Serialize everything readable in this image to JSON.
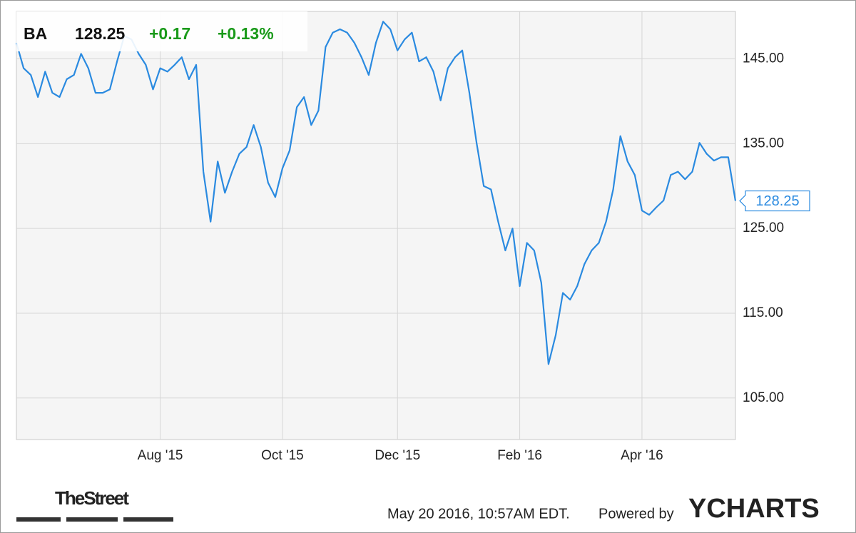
{
  "chart_data": {
    "type": "line",
    "change": "+0.17",
    "change_percent": "+0.13%",
    "categories": [
      null,
      null,
      null,
      null,
      null,
      null,
      null,
      null,
      null,
      null,
      null,
      null,
      null,
      null,
      null,
      null,
      null,
      null,
      null,
      null,
      "Aug '15",
      null,
      null,
      null,
      null,
      null,
      null,
      null,
      null,
      null,
      null,
      null,
      null,
      null,
      null,
      null,
      null,
      "Oct '15",
      null,
      null,
      null,
      null,
      null,
      null,
      null,
      null,
      null,
      null,
      null,
      null,
      null,
      null,
      null,
      "Dec '15",
      null,
      null,
      null,
      null,
      null,
      null,
      null,
      null,
      null,
      null,
      null,
      null,
      null,
      null,
      null,
      null,
      "Feb '16",
      null,
      null,
      null,
      null,
      null,
      null,
      null,
      null,
      null,
      null,
      null,
      null,
      null,
      null,
      null,
      null,
      "Apr '16",
      null,
      null,
      null,
      null,
      null,
      null,
      null,
      null,
      null,
      null,
      null,
      null,
      null
    ],
    "series": [
      {
        "name": "BA",
        "color": "#2a8ae0",
        "values": [
          146.9,
          143.9,
          143.1,
          140.5,
          143.5,
          141.0,
          140.5,
          142.6,
          143.1,
          145.6,
          143.9,
          141.0,
          141.0,
          141.4,
          144.7,
          147.7,
          147.3,
          145.6,
          144.3,
          141.4,
          143.9,
          143.5,
          144.3,
          145.2,
          142.6,
          144.3,
          131.7,
          125.8,
          132.9,
          129.2,
          131.7,
          133.8,
          134.6,
          137.2,
          134.6,
          130.4,
          128.7,
          132.1,
          134.2,
          139.3,
          140.5,
          137.2,
          138.9,
          146.4,
          148.1,
          148.5,
          148.1,
          146.9,
          145.2,
          143.1,
          146.9,
          149.4,
          148.5,
          146.0,
          147.3,
          148.1,
          144.7,
          145.2,
          143.5,
          140.1,
          143.9,
          145.2,
          146.0,
          141.0,
          135.1,
          130.0,
          129.6,
          125.8,
          122.4,
          125.0,
          118.2,
          123.3,
          122.4,
          118.6,
          109.0,
          112.4,
          117.4,
          116.6,
          118.2,
          120.8,
          122.4,
          123.3,
          125.8,
          129.6,
          135.9,
          132.9,
          131.3,
          127.1,
          126.6,
          127.5,
          128.3,
          131.3,
          131.7,
          130.8,
          131.7,
          135.1,
          133.8,
          133.0,
          133.4,
          133.4,
          128.25
        ]
      }
    ],
    "ylim": [
      100.1,
      150.6
    ],
    "yticks": [
      {
        "value": 105,
        "label": "105.00"
      },
      {
        "value": 115,
        "label": "115.00"
      },
      {
        "value": 125,
        "label": "125.00"
      },
      {
        "value": 135,
        "label": "135.00"
      },
      {
        "value": 145,
        "label": "145.00"
      }
    ],
    "grid": true
  },
  "footer": {
    "brand": "TheStreet",
    "timestamp": "May 20 2016, 10:57AM EDT.",
    "powered": "Powered by",
    "provider": "YCHARTS"
  }
}
